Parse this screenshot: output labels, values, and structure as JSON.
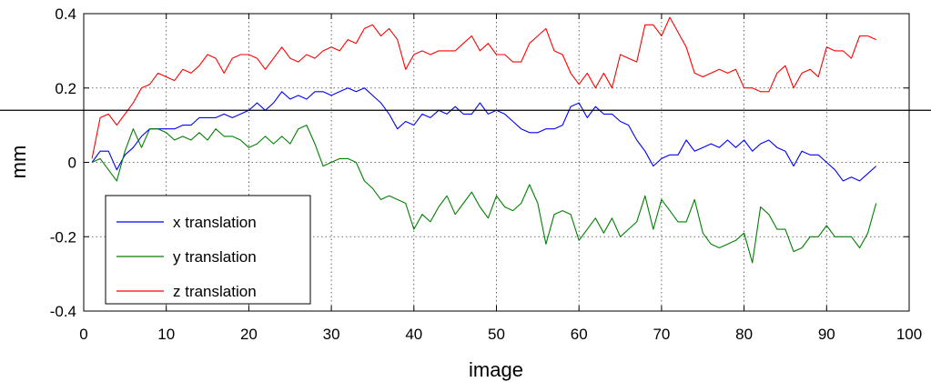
{
  "chart_data": {
    "type": "line",
    "title": "",
    "xlabel": "image",
    "ylabel": "mm",
    "xlim": [
      0,
      100
    ],
    "ylim": [
      -0.4,
      0.4
    ],
    "xticks": [
      0,
      10,
      20,
      30,
      40,
      50,
      60,
      70,
      80,
      90,
      100
    ],
    "yticks": [
      -0.4,
      -0.2,
      0,
      0.2,
      0.4
    ],
    "xtick_labels": [
      "0",
      "10",
      "20",
      "30",
      "40",
      "50",
      "60",
      "70",
      "80",
      "90",
      "100"
    ],
    "ytick_labels": [
      "-0.4",
      "-0.2",
      "0",
      "0.2",
      "0.4"
    ],
    "grid": true,
    "reference_line_y": 0.14,
    "legend": {
      "placement": "bottom-left"
    },
    "series": [
      {
        "name": "x translation",
        "color": "#0000ff",
        "x": [
          1,
          2,
          3,
          4,
          5,
          6,
          7,
          8,
          9,
          10,
          11,
          12,
          13,
          14,
          15,
          16,
          17,
          18,
          19,
          20,
          21,
          22,
          23,
          24,
          25,
          26,
          27,
          28,
          29,
          30,
          31,
          32,
          33,
          34,
          35,
          36,
          37,
          38,
          39,
          40,
          41,
          42,
          43,
          44,
          45,
          46,
          47,
          48,
          49,
          50,
          51,
          52,
          53,
          54,
          55,
          56,
          57,
          58,
          59,
          60,
          61,
          62,
          63,
          64,
          65,
          66,
          67,
          68,
          69,
          70,
          71,
          72,
          73,
          74,
          75,
          76,
          77,
          78,
          79,
          80,
          81,
          82,
          83,
          84,
          85,
          86,
          87,
          88,
          89,
          90,
          91,
          92,
          93,
          94,
          95,
          96
        ],
        "values": [
          0,
          0.03,
          0.03,
          -0.02,
          0.02,
          0.04,
          0.07,
          0.09,
          0.09,
          0.09,
          0.09,
          0.1,
          0.1,
          0.12,
          0.12,
          0.12,
          0.13,
          0.12,
          0.13,
          0.14,
          0.16,
          0.14,
          0.16,
          0.19,
          0.17,
          0.18,
          0.17,
          0.19,
          0.19,
          0.18,
          0.19,
          0.2,
          0.19,
          0.2,
          0.18,
          0.16,
          0.13,
          0.09,
          0.11,
          0.1,
          0.13,
          0.12,
          0.14,
          0.13,
          0.15,
          0.13,
          0.13,
          0.16,
          0.13,
          0.14,
          0.13,
          0.11,
          0.09,
          0.08,
          0.08,
          0.09,
          0.09,
          0.1,
          0.15,
          0.16,
          0.12,
          0.15,
          0.13,
          0.13,
          0.11,
          0.1,
          0.06,
          0.03,
          -0.01,
          0.01,
          0.02,
          0.02,
          0.06,
          0.03,
          0.04,
          0.05,
          0.04,
          0.06,
          0.04,
          0.06,
          0.03,
          0.05,
          0.06,
          0.04,
          0.03,
          -0.01,
          0.03,
          0.02,
          0.02,
          0.0,
          -0.02,
          -0.05,
          -0.04,
          -0.05,
          -0.03,
          -0.01
        ]
      },
      {
        "name": "y translation",
        "color": "#008000",
        "x": [
          1,
          2,
          3,
          4,
          5,
          6,
          7,
          8,
          9,
          10,
          11,
          12,
          13,
          14,
          15,
          16,
          17,
          18,
          19,
          20,
          21,
          22,
          23,
          24,
          25,
          26,
          27,
          28,
          29,
          30,
          31,
          32,
          33,
          34,
          35,
          36,
          37,
          38,
          39,
          40,
          41,
          42,
          43,
          44,
          45,
          46,
          47,
          48,
          49,
          50,
          51,
          52,
          53,
          54,
          55,
          56,
          57,
          58,
          59,
          60,
          61,
          62,
          63,
          64,
          65,
          66,
          67,
          68,
          69,
          70,
          71,
          72,
          73,
          74,
          75,
          76,
          77,
          78,
          79,
          80,
          81,
          82,
          83,
          84,
          85,
          86,
          87,
          88,
          89,
          90,
          91,
          92,
          93,
          94,
          95,
          96
        ],
        "values": [
          0,
          0.01,
          -0.02,
          -0.05,
          0.03,
          0.09,
          0.04,
          0.09,
          0.09,
          0.08,
          0.06,
          0.07,
          0.06,
          0.08,
          0.06,
          0.09,
          0.07,
          0.07,
          0.06,
          0.04,
          0.05,
          0.07,
          0.05,
          0.07,
          0.05,
          0.09,
          0.1,
          0.05,
          -0.01,
          0.0,
          0.01,
          0.01,
          0.0,
          -0.05,
          -0.07,
          -0.1,
          -0.09,
          -0.1,
          -0.11,
          -0.18,
          -0.14,
          -0.16,
          -0.12,
          -0.09,
          -0.14,
          -0.11,
          -0.08,
          -0.12,
          -0.15,
          -0.09,
          -0.12,
          -0.13,
          -0.11,
          -0.06,
          -0.11,
          -0.22,
          -0.14,
          -0.13,
          -0.14,
          -0.21,
          -0.18,
          -0.15,
          -0.19,
          -0.15,
          -0.2,
          -0.18,
          -0.16,
          -0.09,
          -0.18,
          -0.1,
          -0.13,
          -0.16,
          -0.16,
          -0.1,
          -0.19,
          -0.22,
          -0.23,
          -0.22,
          -0.21,
          -0.19,
          -0.27,
          -0.12,
          -0.14,
          -0.18,
          -0.18,
          -0.24,
          -0.23,
          -0.2,
          -0.2,
          -0.17,
          -0.2,
          -0.2,
          -0.2,
          -0.23,
          -0.19,
          -0.11
        ]
      },
      {
        "name": "z translation",
        "color": "#ff0000",
        "x": [
          1,
          2,
          3,
          4,
          5,
          6,
          7,
          8,
          9,
          10,
          11,
          12,
          13,
          14,
          15,
          16,
          17,
          18,
          19,
          20,
          21,
          22,
          23,
          24,
          25,
          26,
          27,
          28,
          29,
          30,
          31,
          32,
          33,
          34,
          35,
          36,
          37,
          38,
          39,
          40,
          41,
          42,
          43,
          44,
          45,
          46,
          47,
          48,
          49,
          50,
          51,
          52,
          53,
          54,
          55,
          56,
          57,
          58,
          59,
          60,
          61,
          62,
          63,
          64,
          65,
          66,
          67,
          68,
          69,
          70,
          71,
          72,
          73,
          74,
          75,
          76,
          77,
          78,
          79,
          80,
          81,
          82,
          83,
          84,
          85,
          86,
          87,
          88,
          89,
          90,
          91,
          92,
          93,
          94,
          95,
          96
        ],
        "values": [
          0.01,
          0.12,
          0.13,
          0.1,
          0.13,
          0.16,
          0.2,
          0.21,
          0.24,
          0.23,
          0.22,
          0.25,
          0.24,
          0.26,
          0.29,
          0.28,
          0.24,
          0.28,
          0.29,
          0.29,
          0.28,
          0.25,
          0.28,
          0.31,
          0.28,
          0.27,
          0.29,
          0.28,
          0.3,
          0.31,
          0.3,
          0.33,
          0.32,
          0.36,
          0.37,
          0.34,
          0.36,
          0.33,
          0.25,
          0.29,
          0.3,
          0.29,
          0.3,
          0.3,
          0.3,
          0.32,
          0.34,
          0.3,
          0.32,
          0.29,
          0.29,
          0.27,
          0.27,
          0.32,
          0.34,
          0.36,
          0.3,
          0.29,
          0.24,
          0.21,
          0.24,
          0.2,
          0.24,
          0.2,
          0.29,
          0.28,
          0.27,
          0.37,
          0.37,
          0.34,
          0.39,
          0.35,
          0.31,
          0.24,
          0.23,
          0.24,
          0.25,
          0.24,
          0.25,
          0.2,
          0.2,
          0.19,
          0.19,
          0.24,
          0.26,
          0.2,
          0.24,
          0.25,
          0.23,
          0.31,
          0.3,
          0.3,
          0.28,
          0.34,
          0.34,
          0.33
        ]
      }
    ]
  }
}
